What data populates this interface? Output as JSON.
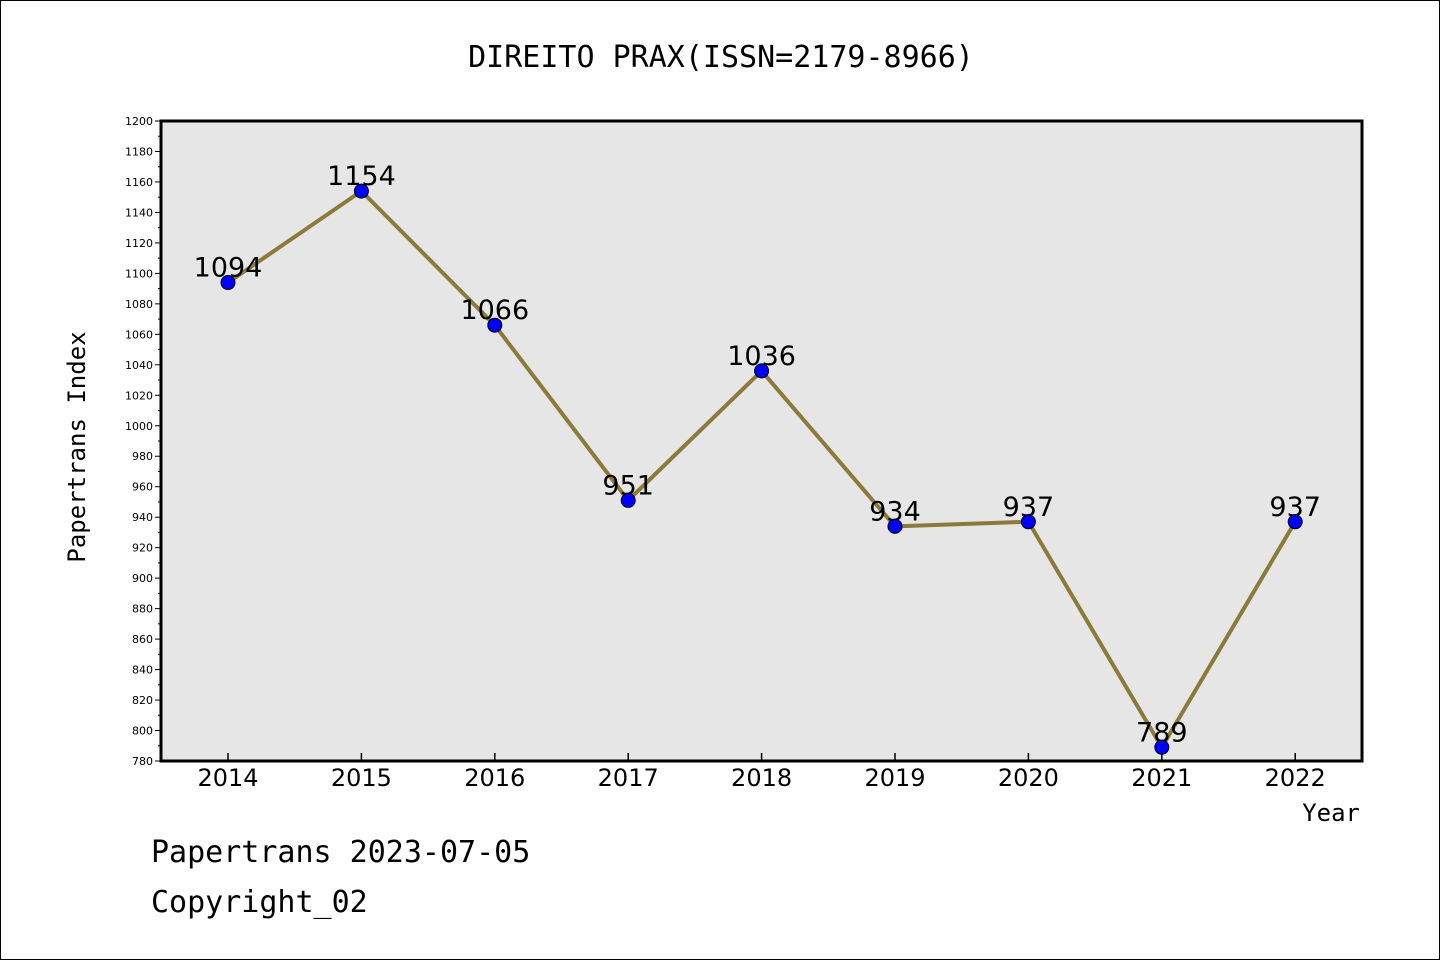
{
  "chart_data": {
    "type": "line",
    "title": "DIREITO PRAX(ISSN=2179-8966)",
    "xlabel": "Year",
    "ylabel": "Papertrans Index",
    "categories": [
      "2014",
      "2015",
      "2016",
      "2017",
      "2018",
      "2019",
      "2020",
      "2021",
      "2022"
    ],
    "series": [
      {
        "values": [
          1094,
          1154,
          1066,
          951,
          1036,
          934,
          937,
          789,
          937
        ],
        "line_color": "#8b7a3a",
        "marker_color": "#0000ff"
      }
    ],
    "data_labels": [
      "1094",
      "1154",
      "1066",
      "951",
      "1036",
      "934",
      "937",
      "789",
      "937"
    ],
    "ylim": [
      780,
      1200
    ],
    "yticks": [
      "780",
      "800",
      "820",
      "840",
      "860",
      "880",
      "900",
      "920",
      "940",
      "960",
      "980",
      "1000",
      "1020",
      "1040",
      "1060",
      "1080",
      "1100",
      "1120",
      "1140",
      "1160",
      "1180",
      "1200"
    ],
    "grid": false,
    "plot_background": "#e6e6e6"
  },
  "footer": {
    "line1": "Papertrans 2023-07-05",
    "line2": "Copyright_02"
  }
}
